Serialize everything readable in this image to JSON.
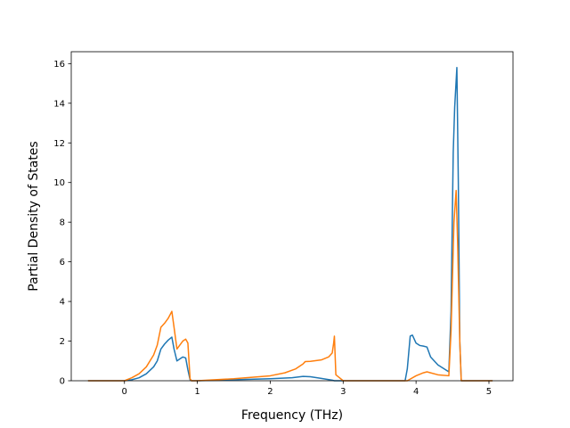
{
  "chart_data": {
    "type": "line",
    "title": "",
    "xlabel": "Frequency (THz)",
    "ylabel": "Partial Density of States",
    "xlim": [
      -0.73,
      5.33
    ],
    "ylim": [
      0,
      16.6
    ],
    "xticks": [
      0,
      1,
      2,
      3,
      4,
      5
    ],
    "yticks": [
      0,
      2,
      4,
      6,
      8,
      10,
      12,
      14,
      16
    ],
    "xtick_labels": [
      "0",
      "1",
      "2",
      "3",
      "4",
      "5"
    ],
    "ytick_labels": [
      "0",
      "2",
      "4",
      "6",
      "8",
      "10",
      "12",
      "14",
      "16"
    ],
    "grid": false,
    "legend": "none",
    "series": [
      {
        "color": "#1f77b4",
        "x": [
          -0.5,
          0.0,
          0.1,
          0.2,
          0.3,
          0.4,
          0.45,
          0.5,
          0.55,
          0.6,
          0.65,
          0.68,
          0.72,
          0.76,
          0.8,
          0.84,
          0.87,
          0.9,
          0.92,
          1.0,
          1.5,
          2.0,
          2.3,
          2.45,
          2.55,
          2.7,
          2.85,
          2.88,
          3.0,
          3.5,
          3.85,
          3.88,
          3.92,
          3.95,
          4.0,
          4.05,
          4.1,
          4.15,
          4.2,
          4.3,
          4.45,
          4.48,
          4.51,
          4.53,
          4.56,
          4.58,
          4.6,
          4.62,
          4.7,
          5.05
        ],
        "y": [
          0.0,
          0.0,
          0.05,
          0.15,
          0.35,
          0.7,
          1.0,
          1.6,
          1.85,
          2.05,
          2.2,
          1.6,
          1.0,
          1.1,
          1.2,
          1.15,
          0.55,
          0.05,
          0.0,
          0.0,
          0.05,
          0.1,
          0.15,
          0.22,
          0.2,
          0.12,
          0.03,
          0.0,
          0.0,
          0.0,
          0.0,
          0.6,
          2.25,
          2.3,
          1.9,
          1.78,
          1.75,
          1.7,
          1.2,
          0.8,
          0.45,
          3.5,
          11.5,
          13.8,
          15.8,
          10.0,
          2.0,
          0.0,
          0.0,
          0.0
        ]
      },
      {
        "color": "#ff7f0e",
        "x": [
          -0.5,
          0.0,
          0.1,
          0.2,
          0.3,
          0.4,
          0.45,
          0.5,
          0.55,
          0.6,
          0.65,
          0.68,
          0.72,
          0.76,
          0.8,
          0.84,
          0.87,
          0.9,
          0.92,
          1.0,
          1.5,
          2.0,
          2.2,
          2.35,
          2.45,
          2.48,
          2.55,
          2.7,
          2.8,
          2.85,
          2.87,
          2.88,
          2.9,
          3.0,
          3.5,
          3.88,
          4.0,
          4.1,
          4.15,
          4.2,
          4.3,
          4.45,
          4.48,
          4.52,
          4.55,
          4.57,
          4.6,
          4.62,
          4.7,
          5.05
        ],
        "y": [
          0.0,
          0.0,
          0.15,
          0.35,
          0.7,
          1.3,
          1.8,
          2.7,
          2.9,
          3.15,
          3.5,
          2.7,
          1.6,
          1.8,
          2.0,
          2.1,
          1.9,
          0.1,
          0.0,
          0.0,
          0.1,
          0.25,
          0.4,
          0.6,
          0.85,
          0.97,
          0.98,
          1.05,
          1.2,
          1.4,
          1.9,
          2.25,
          0.3,
          0.0,
          0.0,
          0.0,
          0.25,
          0.4,
          0.45,
          0.4,
          0.3,
          0.25,
          2.5,
          8.0,
          9.6,
          7.0,
          2.0,
          0.0,
          0.0,
          0.0
        ]
      }
    ]
  }
}
